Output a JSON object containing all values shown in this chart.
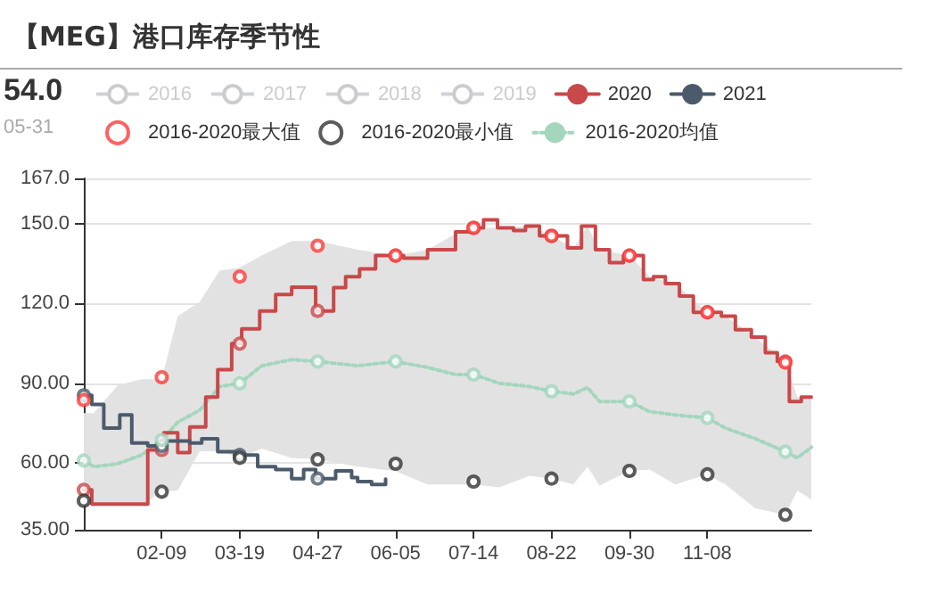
{
  "chart_data": {
    "type": "line",
    "title": "【MEG】港口库存季节性",
    "annotations": [
      "54.0",
      "05-31"
    ],
    "xlim": [
      "--01-01",
      "--12-30"
    ],
    "xticks": [
      {
        "value": "--02-09",
        "label": "02-09"
      },
      {
        "value": "--03-19",
        "label": "03-19"
      },
      {
        "value": "--04-27",
        "label": "04-27"
      },
      {
        "value": "--06-05",
        "label": "06-05"
      },
      {
        "value": "--07-14",
        "label": "07-14"
      },
      {
        "value": "--08-22",
        "label": "08-22"
      },
      {
        "value": "--09-30",
        "label": "09-30"
      },
      {
        "value": "--11-08",
        "label": "11-08"
      }
    ],
    "ylim": [
      35,
      167
    ],
    "yticks": [
      {
        "value": 35,
        "label": "35.00"
      },
      {
        "value": 60,
        "label": "60.00"
      },
      {
        "value": 90,
        "label": "90.00"
      },
      {
        "value": 120,
        "label": "120.0"
      },
      {
        "value": 150,
        "label": "150.0"
      },
      {
        "value": 167,
        "label": "167.0"
      }
    ],
    "grid": "y",
    "legend": "top",
    "marker": "circle",
    "series": [
      {
        "name": "2016",
        "color": "#cccccc",
        "type": "line"
      },
      {
        "name": "2017",
        "color": "#cccccc",
        "type": "line"
      },
      {
        "name": "2018",
        "color": "#cccccc",
        "type": "line"
      },
      {
        "name": "2019",
        "color": "#cccccc",
        "type": "line"
      },
      {
        "name": "2020",
        "color": "#c9484a",
        "type": "step",
        "marker": "none",
        "x": [
          "--01-01",
          "--01-05",
          "--02-02",
          "--02-09",
          "--02-10",
          "--02-17",
          "--02-23",
          "--03-02",
          "--03-08",
          "--03-15",
          "--03-19",
          "--03-20",
          "--03-29",
          "--04-06",
          "--04-14",
          "--04-26",
          "--04-27",
          "--05-05",
          "--05-11",
          "--05-18",
          "--05-26",
          "--06-05",
          "--06-09",
          "--06-21",
          "--07-05",
          "--07-14",
          "--07-19",
          "--07-26",
          "--08-03",
          "--08-09",
          "--08-16",
          "--08-22",
          "--08-30",
          "--09-06",
          "--09-13",
          "--09-20",
          "--09-27",
          "--09-30",
          "--10-07",
          "--10-12",
          "--10-18",
          "--10-25",
          "--11-01",
          "--11-08",
          "--11-15",
          "--11-22",
          "--11-30",
          "--12-07",
          "--12-13",
          "--12-17",
          "--12-19",
          "--12-25",
          "--12-30"
        ],
        "values": [
          50,
          44.6,
          65,
          65,
          71.4,
          64,
          73.6,
          84.8,
          95.1,
          104.9,
          104.9,
          110.5,
          117.2,
          123.4,
          126.1,
          117.2,
          117.2,
          126,
          130.1,
          133,
          138,
          138,
          137,
          140.2,
          146.9,
          148.4,
          151.4,
          148.4,
          147.4,
          149.1,
          145.4,
          145.4,
          140.9,
          149.1,
          140.2,
          135.3,
          138,
          138,
          129,
          130.1,
          127.5,
          122.8,
          116.7,
          116.7,
          115.2,
          110.1,
          107.4,
          101.5,
          98.2,
          98.2,
          83.2,
          84.8,
          84.8
        ]
      },
      {
        "color": "#c9484a",
        "type": "scatter",
        "x": [
          "--01-01",
          "--02-09",
          "--03-19",
          "--04-27",
          "--06-05",
          "--07-14",
          "--08-22",
          "--09-30",
          "--11-08",
          "--12-17"
        ],
        "values": [
          50,
          65,
          104.9,
          117.2,
          138,
          148.4,
          145.4,
          138,
          116.7,
          98.2
        ]
      },
      {
        "name": "2021",
        "color": "#4b5b6c",
        "type": "step",
        "marker": "none",
        "x": [
          "--01-01",
          "--01-05",
          "--01-11",
          "--01-19",
          "--01-25",
          "--02-02",
          "--02-09",
          "--02-10",
          "--02-23",
          "--02-29",
          "--03-08",
          "--03-19",
          "--03-28",
          "--04-06",
          "--04-14",
          "--04-20",
          "--04-26",
          "--04-27",
          "--05-06",
          "--05-14",
          "--05-17",
          "--05-24",
          "--05-31"
        ],
        "values": [
          85.5,
          82.1,
          73.2,
          78.1,
          67.6,
          66.5,
          66.5,
          68.3,
          67.6,
          69.2,
          64.3,
          63.1,
          58.7,
          57.6,
          54.2,
          57.6,
          54.2,
          54.2,
          57.1,
          54.6,
          53.1,
          52,
          54.0
        ]
      },
      {
        "color": "#4b5b6c",
        "type": "scatter",
        "x": [
          "--01-01",
          "--02-09",
          "--03-19",
          "--04-27"
        ],
        "values": [
          85.5,
          66.5,
          63.1,
          54.2
        ]
      },
      {
        "name": "2016-2020最大值",
        "color": "#ff3b3b",
        "type": "scatter",
        "x": [
          "--01-01",
          "--02-09",
          "--03-19",
          "--04-27",
          "--06-05",
          "--07-14",
          "--08-22",
          "--09-30",
          "--11-08",
          "--12-17"
        ],
        "values": [
          83.7,
          92.3,
          130.1,
          141.7,
          138,
          148.4,
          145.4,
          138,
          116.7,
          97.8
        ]
      },
      {
        "name": "2016-2020最小值",
        "color": "#333333",
        "type": "scatter",
        "x": [
          "--01-01",
          "--02-09",
          "--03-19",
          "--04-27",
          "--06-05",
          "--07-14",
          "--08-22",
          "--09-30",
          "--11-08",
          "--12-17"
        ],
        "values": [
          45.9,
          49.3,
          62,
          61.4,
          59.8,
          53.1,
          54.2,
          57.1,
          55.8,
          40.6
        ]
      },
      {
        "color": "#a3d6bd",
        "type": "scatter",
        "x": [
          "--01-01",
          "--02-09",
          "--03-19",
          "--04-27",
          "--06-05",
          "--07-14",
          "--08-22",
          "--09-30",
          "--11-08",
          "--12-17"
        ],
        "values": [
          61,
          68.7,
          90,
          98.2,
          98.2,
          93.3,
          87,
          83.2,
          77,
          64.3
        ]
      },
      {
        "name": "2016-2020均值",
        "color": "#a3d6bd",
        "type": "line",
        "marker": "none",
        "line_style": "dotted",
        "x": [
          "--01-01",
          "--01-06",
          "--01-18",
          "--01-30",
          "--02-09",
          "--02-17",
          "--02-28",
          "--03-09",
          "--03-19",
          "--03-30",
          "--04-14",
          "--04-27",
          "--05-17",
          "--06-05",
          "--06-21",
          "--07-05",
          "--07-14",
          "--07-27",
          "--08-11",
          "--08-22",
          "--09-02",
          "--09-09",
          "--09-15",
          "--09-30",
          "--10-10",
          "--10-23",
          "--11-08",
          "--11-17",
          "--12-02",
          "--12-17",
          "--12-23",
          "--12-30"
        ],
        "values": [
          61,
          58.7,
          59.8,
          63.1,
          68.7,
          75.4,
          79.9,
          88.8,
          90,
          96.6,
          98.9,
          98.2,
          96.6,
          98.2,
          96,
          93.3,
          93.3,
          90,
          88.8,
          87,
          86,
          88.4,
          83.2,
          83.2,
          79.4,
          78.1,
          77,
          73.2,
          69.2,
          64.3,
          62,
          66
        ],
        "lower": [
          44.4,
          44.4,
          44.4,
          44.4,
          49.3,
          49.7,
          64.5,
          64.5,
          62,
          65.5,
          62,
          61.4,
          58.7,
          57,
          52,
          52,
          52,
          50.9,
          55.3,
          54.2,
          52,
          58.7,
          51.6,
          57.1,
          57.6,
          52,
          55.8,
          52,
          43,
          40.6,
          49.7,
          46.4
        ],
        "upper": [
          78.8,
          78.8,
          89.3,
          91.5,
          91.5,
          115.2,
          120.6,
          132.4,
          133.5,
          138,
          143.5,
          143.5,
          140.2,
          138,
          140.2,
          146.2,
          148.4,
          148.4,
          149.1,
          145.4,
          140.9,
          149.1,
          140.2,
          138,
          130.1,
          127.5,
          116.7,
          115.2,
          107.4,
          98.2,
          84.8,
          84.8
        ]
      }
    ]
  }
}
